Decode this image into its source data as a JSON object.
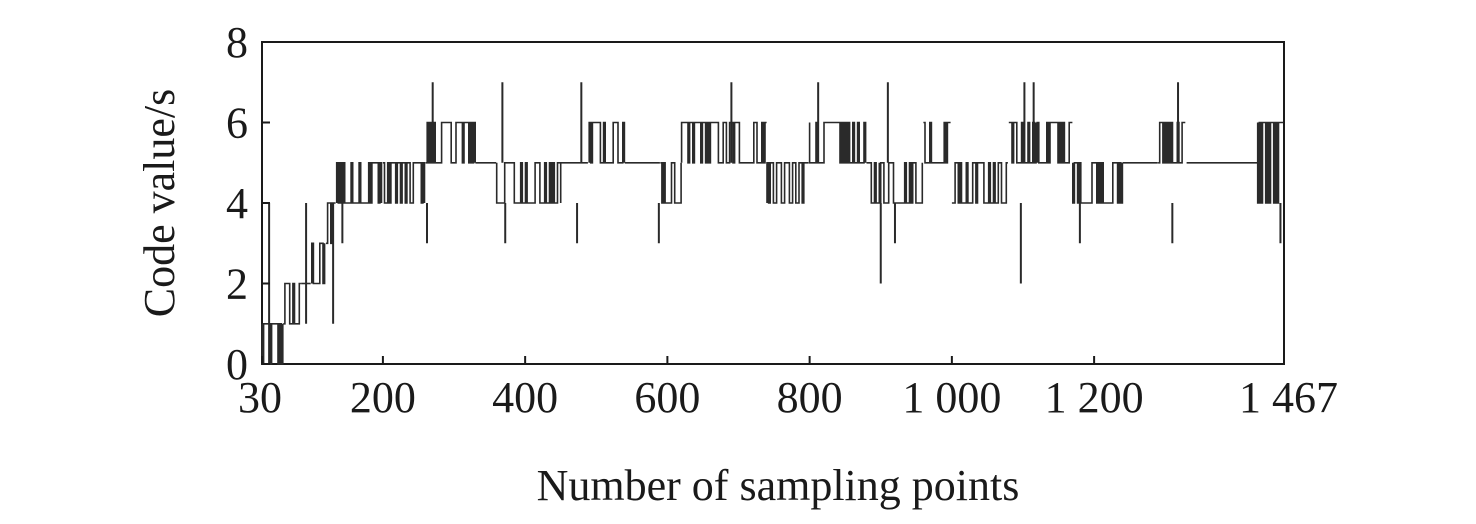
{
  "chart_data": {
    "type": "line",
    "title": "",
    "xlabel": "Number of sampling points",
    "ylabel": "Code value/s",
    "xlim": [
      30,
      1467
    ],
    "ylim": [
      0,
      8
    ],
    "grid": false,
    "x_ticks": [
      30,
      200,
      400,
      600,
      800,
      1000,
      1200,
      1467
    ],
    "x_tick_labels": [
      "30",
      "200",
      "400",
      "600",
      "800",
      "1 000",
      "1 200",
      "1 467"
    ],
    "y_ticks": [
      0,
      2,
      4,
      6,
      8
    ],
    "y_tick_labels": [
      "0",
      "2",
      "4",
      "6",
      "8"
    ],
    "series": [
      {
        "color": "#2a2a2a",
        "segments": [
          {
            "x": [
              30,
              60
            ],
            "range": [
              0,
              1
            ]
          },
          {
            "x": [
              60,
              85
            ],
            "range": [
              1,
              2
            ]
          },
          {
            "x": [
              85,
              100
            ],
            "range": [
              2,
              2
            ]
          },
          {
            "x": [
              100,
              120
            ],
            "range": [
              2,
              3
            ]
          },
          {
            "x": [
              120,
              135
            ],
            "range": [
              3,
              4
            ]
          },
          {
            "x": [
              135,
              200
            ],
            "range": [
              4,
              5
            ]
          },
          {
            "x": [
              200,
              260
            ],
            "range": [
              4,
              5
            ]
          },
          {
            "x": [
              260,
              330
            ],
            "range": [
              5,
              6
            ]
          },
          {
            "x": [
              330,
              360
            ],
            "range": [
              5,
              5
            ]
          },
          {
            "x": [
              360,
              450
            ],
            "range": [
              4,
              5
            ]
          },
          {
            "x": [
              450,
              490
            ],
            "range": [
              5,
              5
            ]
          },
          {
            "x": [
              490,
              540
            ],
            "range": [
              5,
              6
            ]
          },
          {
            "x": [
              540,
              590
            ],
            "range": [
              5,
              5
            ]
          },
          {
            "x": [
              590,
              620
            ],
            "range": [
              4,
              5
            ]
          },
          {
            "x": [
              620,
              690
            ],
            "range": [
              5,
              6
            ]
          },
          {
            "x": [
              690,
              740
            ],
            "range": [
              5,
              6
            ]
          },
          {
            "x": [
              740,
              800
            ],
            "range": [
              4,
              5
            ]
          },
          {
            "x": [
              800,
              880
            ],
            "range": [
              5,
              6
            ]
          },
          {
            "x": [
              880,
              900
            ],
            "range": [
              4,
              5
            ]
          },
          {
            "x": [
              900,
              960
            ],
            "range": [
              4,
              5
            ]
          },
          {
            "x": [
              960,
              1000
            ],
            "range": [
              5,
              6
            ]
          },
          {
            "x": [
              1000,
              1080
            ],
            "range": [
              4,
              5
            ]
          },
          {
            "x": [
              1080,
              1120
            ],
            "range": [
              5,
              6
            ]
          },
          {
            "x": [
              1120,
              1170
            ],
            "range": [
              5,
              6
            ]
          },
          {
            "x": [
              1170,
              1240
            ],
            "range": [
              4,
              5
            ]
          },
          {
            "x": [
              1240,
              1290
            ],
            "range": [
              5,
              5
            ]
          },
          {
            "x": [
              1290,
              1330
            ],
            "range": [
              5,
              6
            ]
          },
          {
            "x": [
              1330,
              1430
            ],
            "range": [
              5,
              5
            ]
          },
          {
            "x": [
              1430,
              1467
            ],
            "range": [
              4,
              6
            ]
          }
        ],
        "spikes": [
          {
            "x": 40,
            "y": 0
          },
          {
            "x": 92,
            "y": 1
          },
          {
            "x": 130,
            "y": 1
          },
          {
            "x": 143,
            "y": 3
          },
          {
            "x": 262,
            "y": 3
          },
          {
            "x": 270,
            "y": 7
          },
          {
            "x": 368,
            "y": 7
          },
          {
            "x": 372,
            "y": 3
          },
          {
            "x": 473,
            "y": 3
          },
          {
            "x": 479,
            "y": 7
          },
          {
            "x": 588,
            "y": 3
          },
          {
            "x": 690,
            "y": 7
          },
          {
            "x": 812,
            "y": 7
          },
          {
            "x": 900,
            "y": 2
          },
          {
            "x": 910,
            "y": 7
          },
          {
            "x": 920,
            "y": 3
          },
          {
            "x": 1097,
            "y": 2
          },
          {
            "x": 1102,
            "y": 7
          },
          {
            "x": 1115,
            "y": 7
          },
          {
            "x": 1180,
            "y": 3
          },
          {
            "x": 1310,
            "y": 3
          },
          {
            "x": 1318,
            "y": 7
          },
          {
            "x": 1462,
            "y": 3
          }
        ]
      }
    ]
  }
}
